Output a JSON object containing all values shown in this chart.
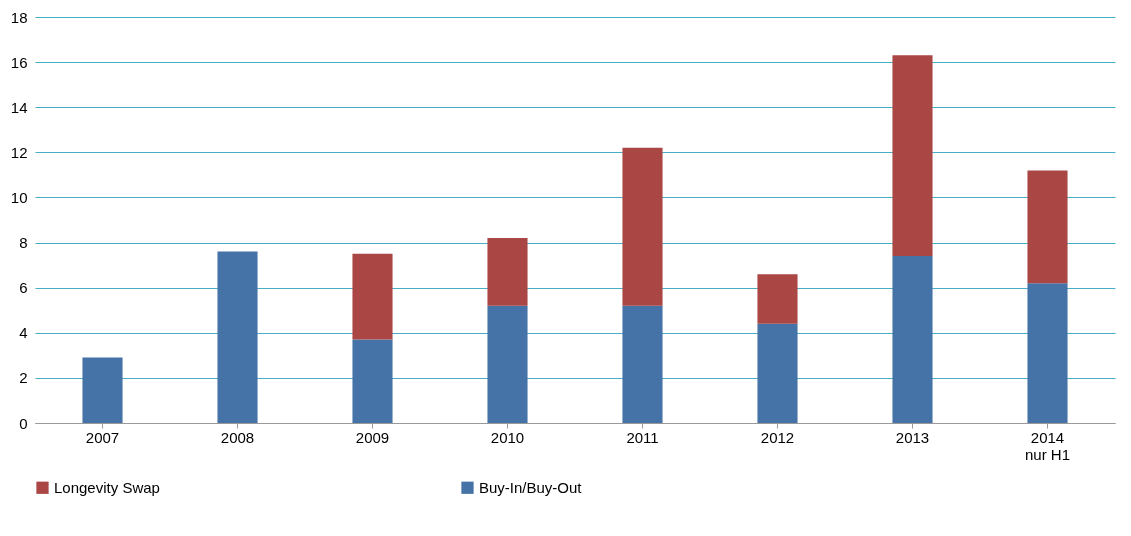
{
  "chart_data": {
    "type": "bar",
    "stacked": true,
    "categories": [
      "2007",
      "2008",
      "2009",
      "2010",
      "2011",
      "2012",
      "2013",
      "2014\nnur H1"
    ],
    "series": [
      {
        "name": "Buy-In/Buy-Out",
        "color": "#4573a7",
        "values": [
          2.9,
          7.6,
          3.7,
          5.2,
          5.2,
          4.4,
          7.4,
          6.2
        ]
      },
      {
        "name": "Longevity Swap",
        "color": "#aa4644",
        "values": [
          null,
          null,
          3.8,
          3.0,
          7.0,
          2.2,
          8.9,
          5.0
        ]
      }
    ],
    "ylim": [
      0,
      18
    ],
    "yticks": [
      0,
      2,
      4,
      6,
      8,
      10,
      12,
      14,
      16,
      18
    ],
    "grid": "y",
    "legend": "bottom"
  }
}
